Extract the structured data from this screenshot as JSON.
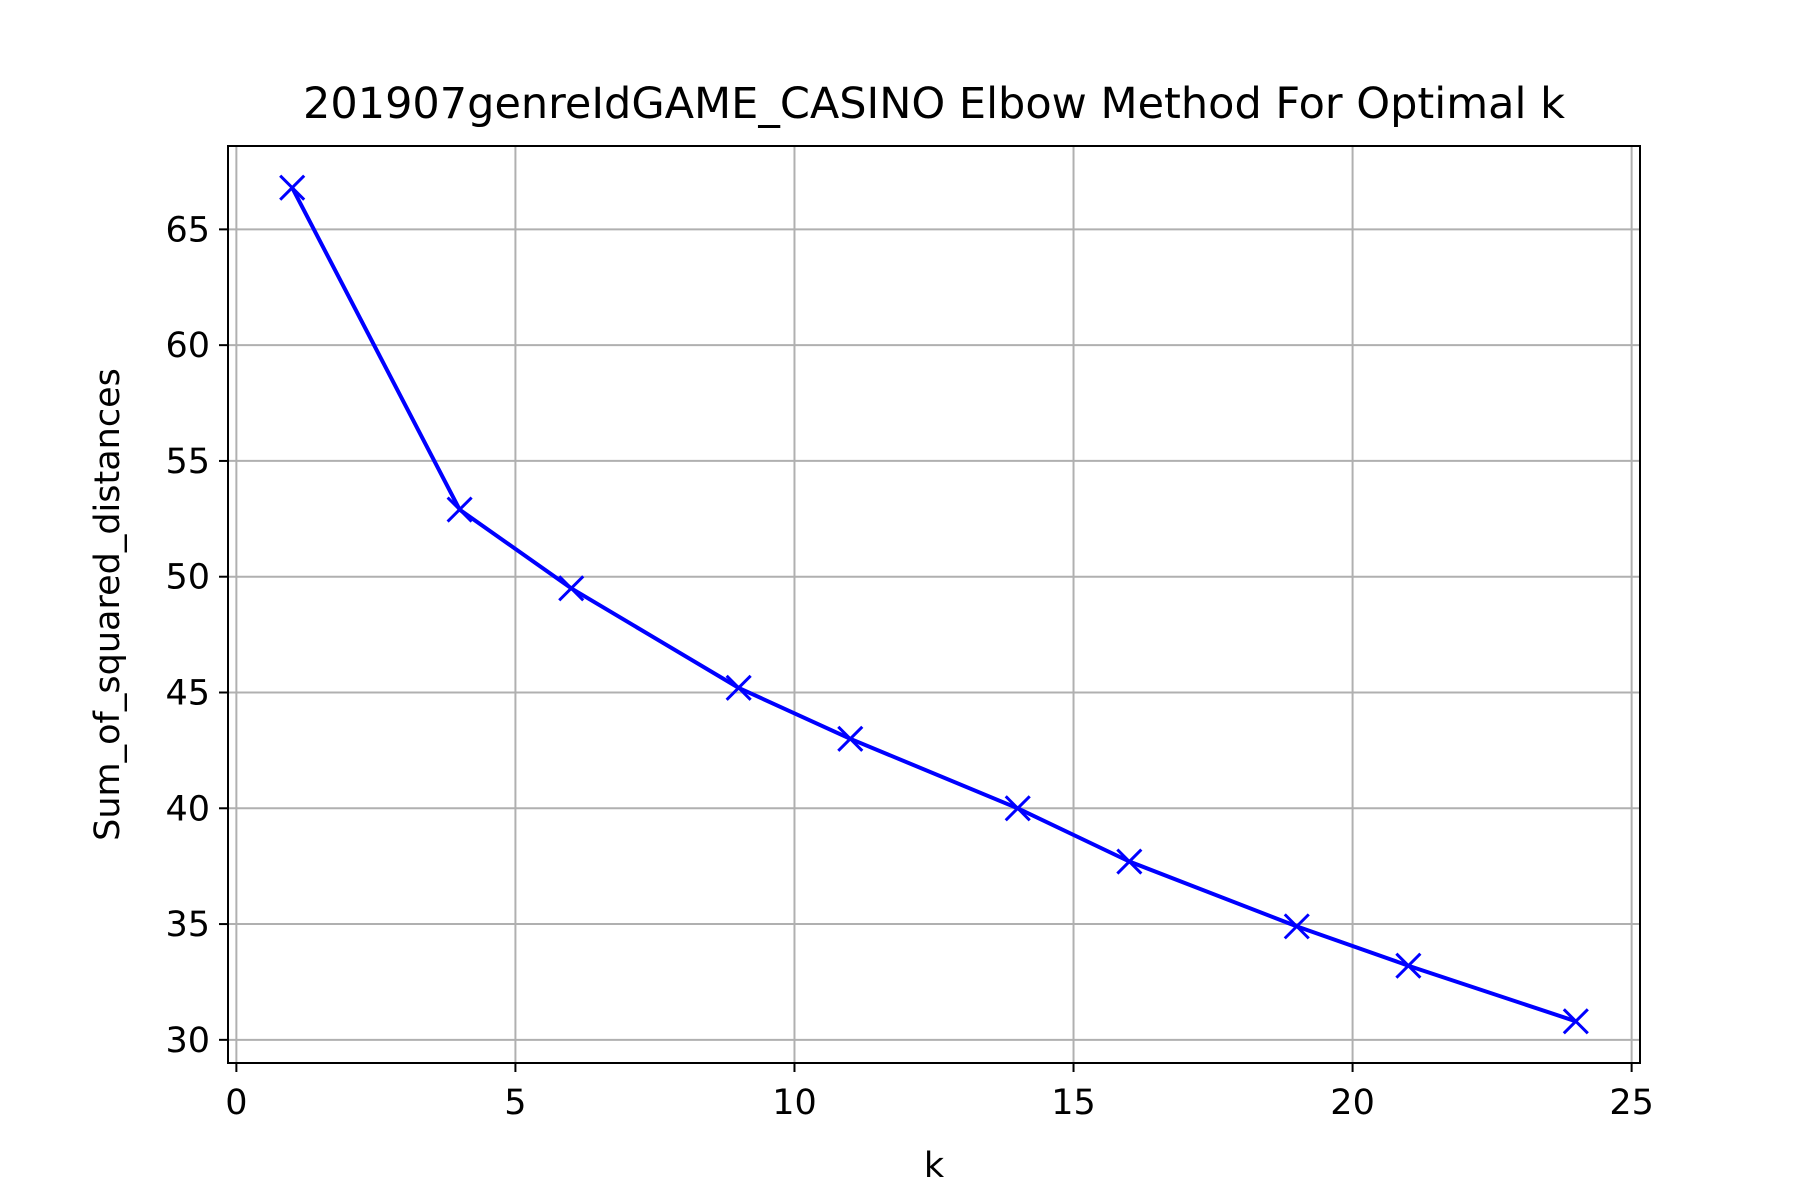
{
  "chart_data": {
    "type": "line",
    "title": "201907genreIdGAME_CASINO Elbow Method For Optimal k",
    "xlabel": "k",
    "ylabel": "Sum_of_squared_distances",
    "x": [
      1,
      4,
      6,
      9,
      11,
      14,
      16,
      19,
      21,
      24
    ],
    "series": [
      {
        "values": [
          66.8,
          52.9,
          49.5,
          45.2,
          43.0,
          40.0,
          37.7,
          34.9,
          33.2,
          30.8
        ],
        "color": "#0000ff",
        "marker": "x"
      }
    ],
    "xlim": [
      -0.15,
      25.15
    ],
    "ylim": [
      29.0,
      68.6
    ],
    "xticks": [
      0,
      5,
      10,
      15,
      20,
      25
    ],
    "xtick_labels": [
      "0",
      "5",
      "10",
      "15",
      "20",
      "25"
    ],
    "yticks": [
      30,
      35,
      40,
      45,
      50,
      55,
      60,
      65
    ],
    "ytick_labels": [
      "30",
      "35",
      "40",
      "45",
      "50",
      "55",
      "60",
      "65"
    ],
    "grid": true,
    "grid_color": "#b0b0b0",
    "background": "#ffffff"
  }
}
